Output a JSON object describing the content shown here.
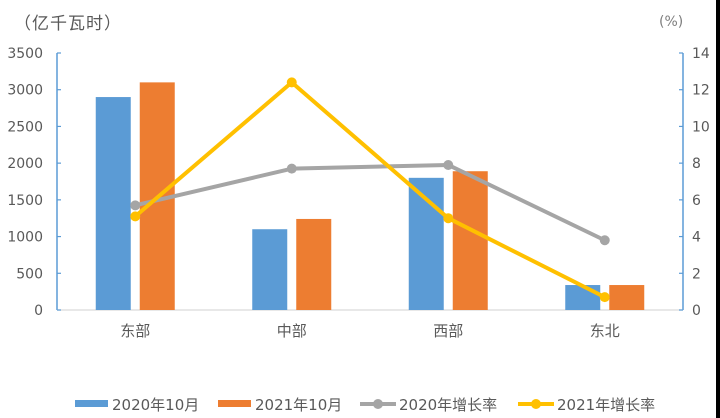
{
  "chart_data": {
    "type": "bar",
    "title": "",
    "categories": [
      "东部",
      "中部",
      "西部",
      "东北"
    ],
    "left_axis": {
      "label": "（亿千瓦时）",
      "min": 0,
      "max": 3500,
      "step": 500,
      "ticks": [
        "0",
        "500",
        "1000",
        "1500",
        "2000",
        "2500",
        "3000",
        "3500"
      ]
    },
    "right_axis": {
      "label": "(%)",
      "min": 0,
      "max": 14,
      "step": 2,
      "ticks": [
        "0",
        "2",
        "4",
        "6",
        "8",
        "10",
        "12",
        "14"
      ]
    },
    "series": [
      {
        "name": "2020年10月",
        "type": "bar",
        "axis": "left",
        "color": "#5b9bd5",
        "values": [
          2900,
          1100,
          1800,
          340
        ]
      },
      {
        "name": "2021年10月",
        "type": "bar",
        "axis": "left",
        "color": "#ed7d31",
        "values": [
          3100,
          1240,
          1890,
          340
        ]
      },
      {
        "name": "2020年增长率",
        "type": "line",
        "axis": "right",
        "color": "#a5a5a5",
        "values": [
          5.7,
          7.7,
          7.9,
          3.8
        ]
      },
      {
        "name": "2021年增长率",
        "type": "line",
        "axis": "right",
        "color": "#ffc000",
        "values": [
          5.1,
          12.4,
          5.0,
          0.7
        ]
      }
    ],
    "grid": false,
    "legend_position": "bottom"
  },
  "labels": {
    "left_unit": "（亿千瓦时）",
    "right_unit": "(%)"
  }
}
